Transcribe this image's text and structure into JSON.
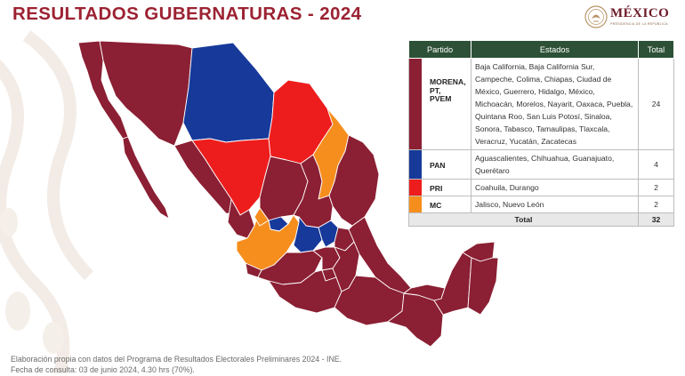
{
  "title": "RESULTADOS GUBERNATURAS - 2024",
  "logo": {
    "name": "MÉXICO",
    "subtitle": "PRESIDENCIA DE LA REPÚBLICA"
  },
  "colors": {
    "morena": "#8b1f33",
    "pan": "#17399a",
    "pri": "#ee1d1d",
    "mc": "#f68e1e",
    "header": "#2d5136",
    "title": "#9c2232"
  },
  "table": {
    "headers": {
      "party": "Partido",
      "states": "Estados",
      "total": "Total"
    },
    "rows": [
      {
        "party": "MORENA, PT, PVEM",
        "party_lines": [
          "MORENA,",
          "PT,",
          "PVEM"
        ],
        "color": "morena",
        "states": "Baja California, Baja California Sur, Campeche, Colima, Chiapas, Ciudad de México, Guerrero, Hidalgo, México, Michoacán, Morelos, Nayarit, Oaxaca, Puebla, Quintana Roo, San Luis Potosí, Sinaloa, Sonora, Tabasco, Tamaulipas, Tlaxcala, Veracruz, Yucatán, Zacatecas",
        "total": "24"
      },
      {
        "party": "PAN",
        "color": "pan",
        "states": "Aguascalientes, Chihuahua, Guanajuato, Querétaro",
        "total": "4"
      },
      {
        "party": "PRI",
        "color": "pri",
        "states": "Coahuila, Durango",
        "total": "2"
      },
      {
        "party": "MC",
        "color": "mc",
        "states": "Jalisco, Nuevo León",
        "total": "2"
      }
    ],
    "total_label": "Total",
    "total_value": "32"
  },
  "footer": {
    "line1": "Elaboración propia con datos del Programa de Resultados Electorales Preliminares 2024 - INE.",
    "line2": "Fecha de consulta: 03 de junio 2024, 4.30 hrs (70%)."
  },
  "map_states": [
    {
      "state": "Baja California",
      "party": "morena"
    },
    {
      "state": "Baja California Sur",
      "party": "morena"
    },
    {
      "state": "Sonora",
      "party": "morena"
    },
    {
      "state": "Chihuahua",
      "party": "pan"
    },
    {
      "state": "Coahuila",
      "party": "pri"
    },
    {
      "state": "Durango",
      "party": "pri"
    },
    {
      "state": "Nuevo León",
      "party": "mc"
    },
    {
      "state": "Jalisco",
      "party": "mc"
    },
    {
      "state": "Aguascalientes",
      "party": "pan"
    },
    {
      "state": "Guanajuato",
      "party": "pan"
    },
    {
      "state": "Querétaro",
      "party": "pan"
    }
  ]
}
